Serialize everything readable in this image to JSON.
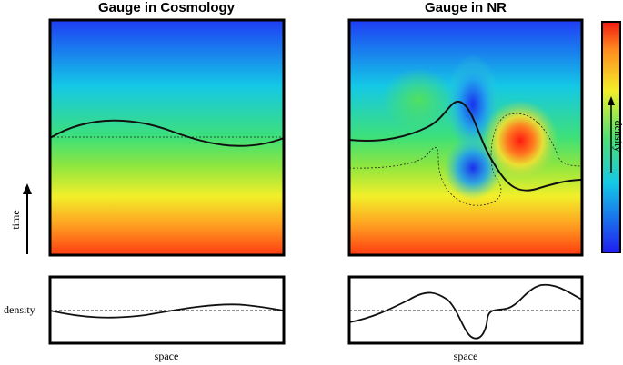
{
  "panels": [
    {
      "title": "Gauge in Cosmology",
      "x_label": "space"
    },
    {
      "title": "Gauge in NR",
      "x_label": "space"
    }
  ],
  "y_labels": {
    "upper": "time",
    "lower": "density"
  },
  "colorbar": {
    "label": "density"
  }
}
